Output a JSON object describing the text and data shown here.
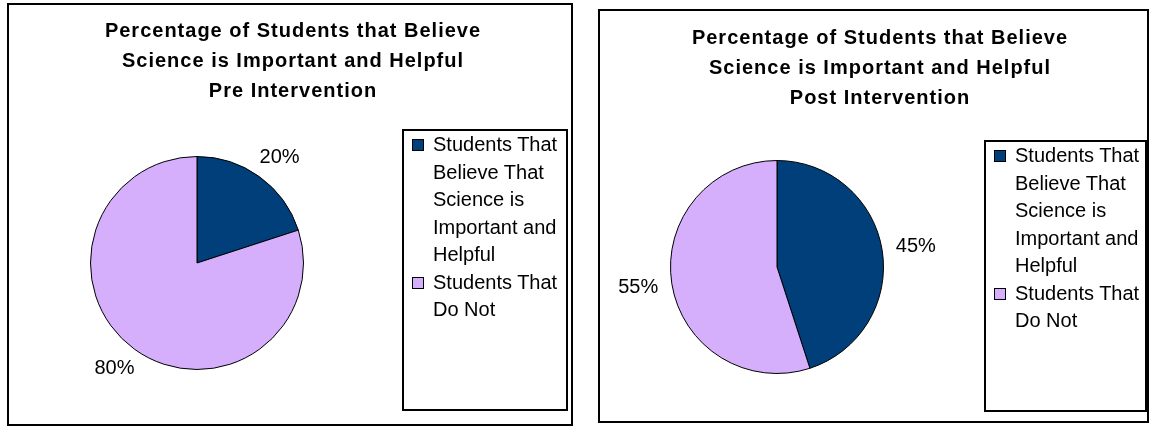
{
  "chart_data": [
    {
      "type": "pie",
      "title": "Percentage of Students that Believe Science is Important and Helpful",
      "subtitle": "Pre Intervention",
      "categories": [
        "Students That Believe That Science is Important and Helpful",
        "Students That Do Not"
      ],
      "values": [
        20,
        80
      ],
      "colors": [
        "#013f7a",
        "#d5aefc"
      ],
      "value_labels": [
        "20%",
        "80%"
      ],
      "legend": "right"
    },
    {
      "type": "pie",
      "title": "Percentage of Students that Believe Science is Important and Helpful",
      "subtitle": "Post Intervention",
      "categories": [
        "Students That Believe That Science is Important and Helpful",
        "Students That Do Not"
      ],
      "values": [
        45,
        55
      ],
      "colors": [
        "#013f7a",
        "#d5aefc"
      ],
      "value_labels": [
        "45%",
        "55%"
      ],
      "legend": "right"
    }
  ]
}
